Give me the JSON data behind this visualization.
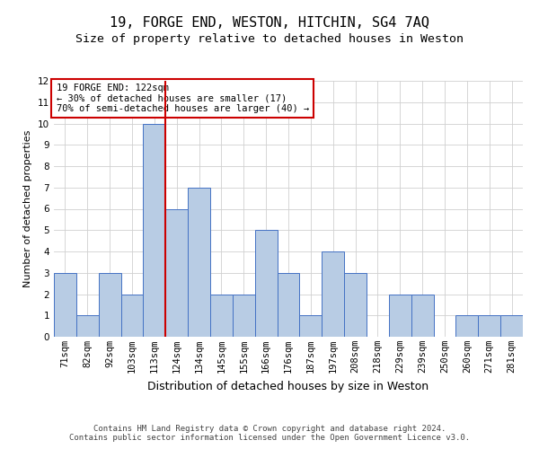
{
  "title1": "19, FORGE END, WESTON, HITCHIN, SG4 7AQ",
  "title2": "Size of property relative to detached houses in Weston",
  "xlabel": "Distribution of detached houses by size in Weston",
  "ylabel": "Number of detached properties",
  "categories": [
    "71sqm",
    "82sqm",
    "92sqm",
    "103sqm",
    "113sqm",
    "124sqm",
    "134sqm",
    "145sqm",
    "155sqm",
    "166sqm",
    "176sqm",
    "187sqm",
    "197sqm",
    "208sqm",
    "218sqm",
    "229sqm",
    "239sqm",
    "250sqm",
    "260sqm",
    "271sqm",
    "281sqm"
  ],
  "values": [
    3,
    1,
    3,
    2,
    10,
    6,
    7,
    2,
    2,
    5,
    3,
    1,
    4,
    3,
    0,
    2,
    2,
    0,
    1,
    1,
    1
  ],
  "bar_color": "#b8cce4",
  "bar_edge_color": "#4472c4",
  "vline_color": "#cc0000",
  "annotation_text": "19 FORGE END: 122sqm\n← 30% of detached houses are smaller (17)\n70% of semi-detached houses are larger (40) →",
  "annotation_box_color": "#ffffff",
  "annotation_box_edge_color": "#cc0000",
  "ylim": [
    0,
    12
  ],
  "yticks": [
    0,
    1,
    2,
    3,
    4,
    5,
    6,
    7,
    8,
    9,
    10,
    11,
    12
  ],
  "footer1": "Contains HM Land Registry data © Crown copyright and database right 2024.",
  "footer2": "Contains public sector information licensed under the Open Government Licence v3.0.",
  "bg_color": "#ffffff",
  "grid_color": "#d0d0d0",
  "title1_fontsize": 11,
  "title2_fontsize": 9.5,
  "xlabel_fontsize": 9,
  "ylabel_fontsize": 8,
  "tick_fontsize": 7.5,
  "footer_fontsize": 6.5,
  "annotation_fontsize": 7.5
}
